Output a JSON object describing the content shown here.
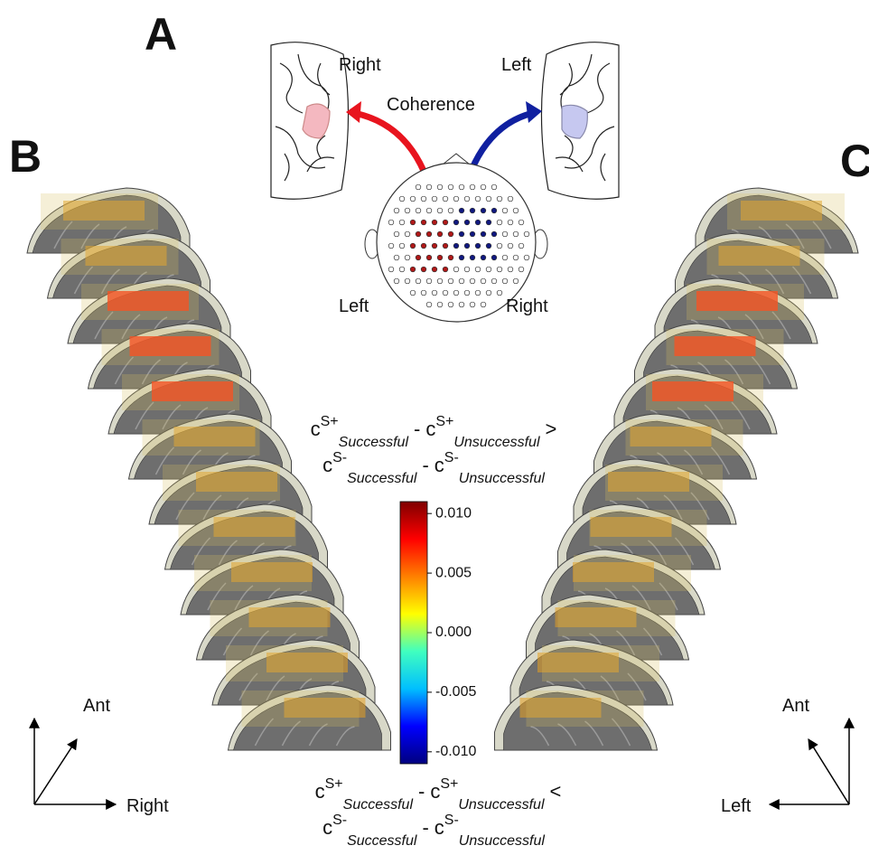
{
  "panel_labels": [
    "A",
    "B",
    "C"
  ],
  "top_view": {
    "right_brain_label": "Right",
    "left_brain_label": "Left",
    "coherence_label": "Coherence",
    "head_left_label": "Left",
    "head_right_label": "Right"
  },
  "formulas": [
    {
      "lines": [
        [
          {
            "base": "c",
            "sup": "S+",
            "sub": "Successful"
          },
          {
            "op": "-"
          },
          {
            "base": "c",
            "sup": "S+",
            "sub": "Unsuccessful"
          },
          {
            "op": ">"
          }
        ],
        [
          {
            "base": "c",
            "sup": "S-",
            "sub": "Successful"
          },
          {
            "op": "-"
          },
          {
            "base": "c",
            "sup": "S-",
            "sub": "Unsuccessful"
          }
        ]
      ]
    },
    {
      "lines": [
        [
          {
            "base": "c",
            "sup": "S+",
            "sub": "Successful"
          },
          {
            "op": "-"
          },
          {
            "base": "c",
            "sup": "S+",
            "sub": "Unsuccessful"
          },
          {
            "op": "<"
          }
        ],
        [
          {
            "base": "c",
            "sup": "S-",
            "sub": "Successful"
          },
          {
            "op": "-"
          },
          {
            "base": "c",
            "sup": "S-",
            "sub": "Unsuccessful"
          }
        ]
      ]
    }
  ],
  "colorbar": {
    "lim": [
      -0.011,
      0.011
    ],
    "ticks": [
      {
        "value": 0.01,
        "label": "0.010"
      },
      {
        "value": 0.005,
        "label": "0.005"
      },
      {
        "value": 0,
        "label": "0.000"
      },
      {
        "value": -0.005,
        "label": "-0.005"
      },
      {
        "value": -0.01,
        "label": "-0.010"
      }
    ],
    "colors": [
      "#00007f",
      "#0000ff",
      "#00bfff",
      "#40ffbf",
      "#ffff00",
      "#ff8000",
      "#ff0000",
      "#7f0000"
    ]
  },
  "axes_b": {
    "up_label": "Ant",
    "side_label": "Right"
  },
  "axes_c": {
    "up_label": "Ant",
    "side_label": "Left"
  }
}
